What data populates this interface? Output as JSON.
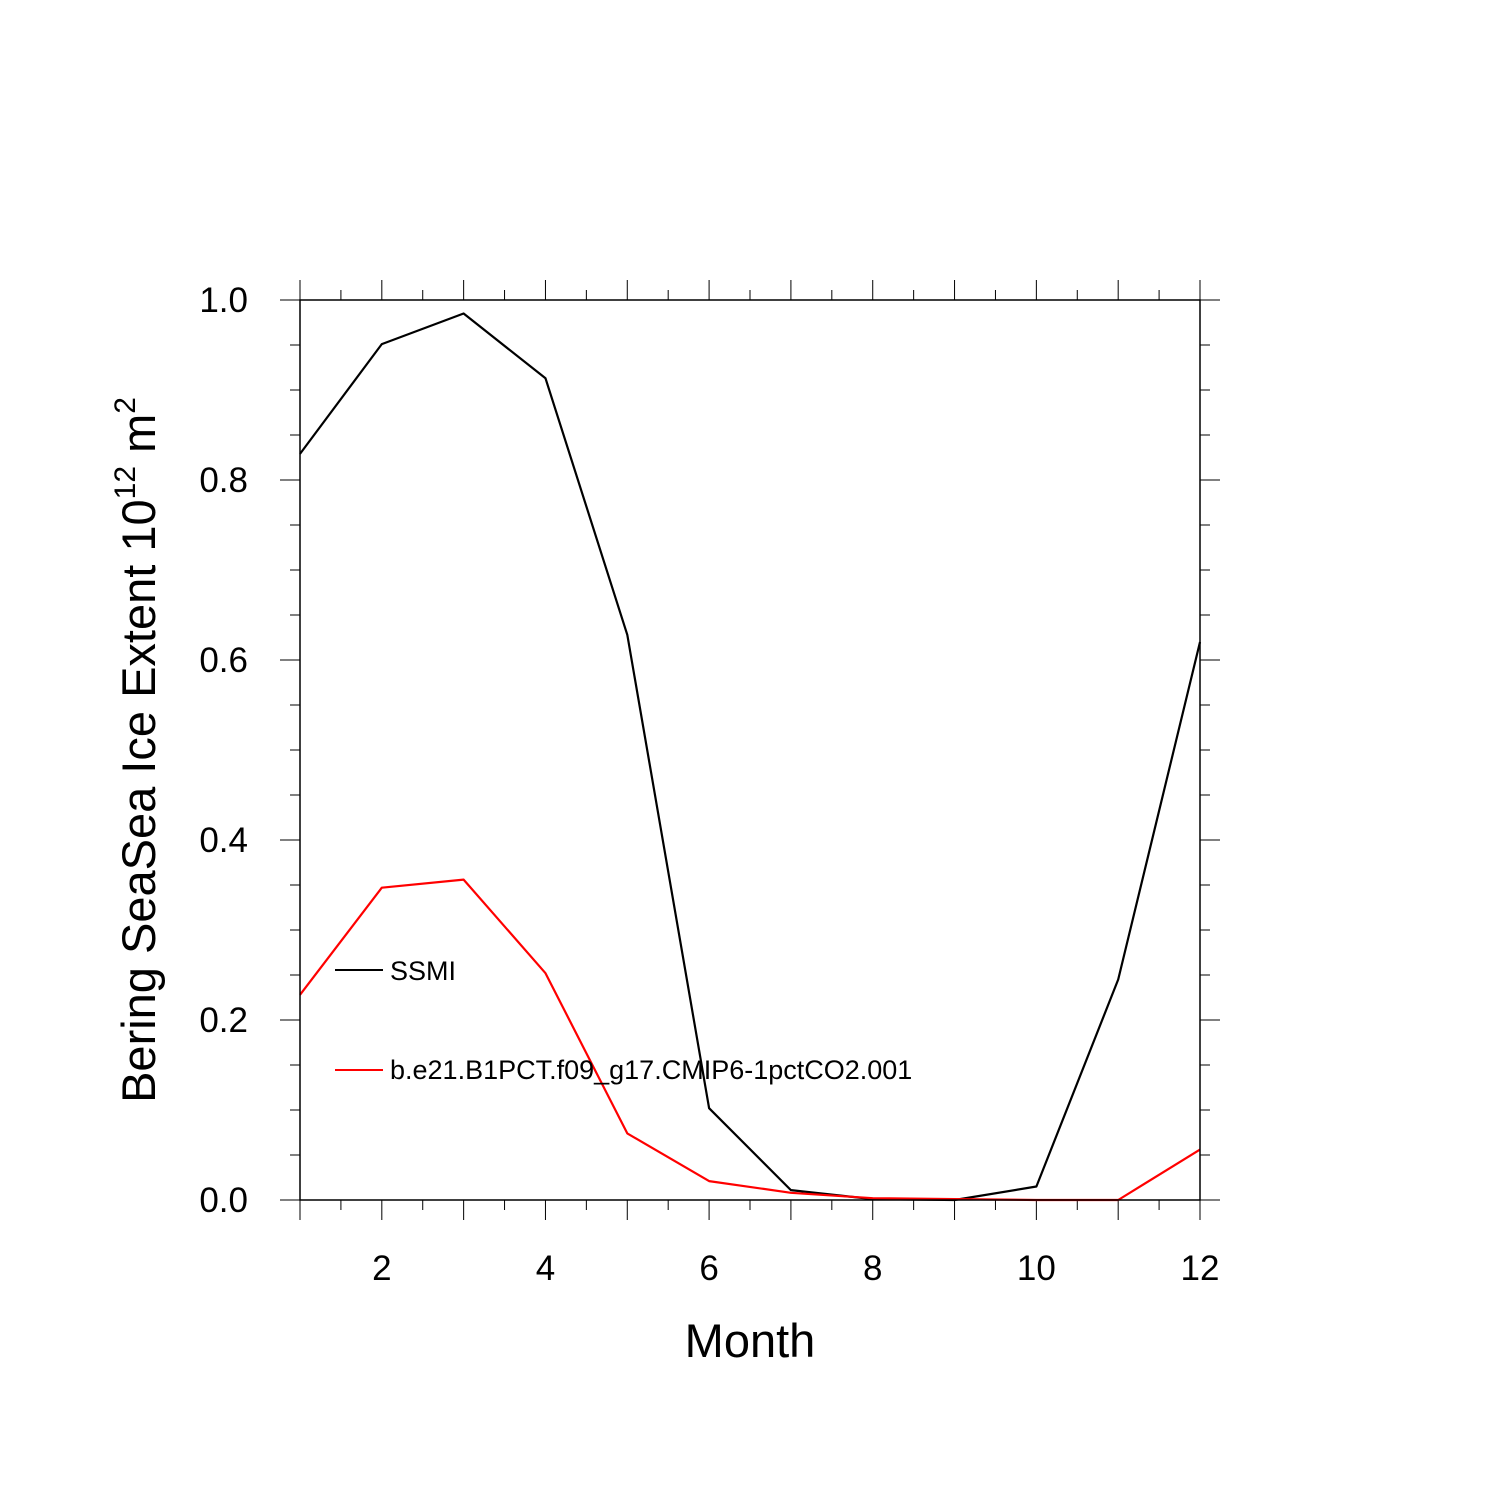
{
  "chart_data": {
    "type": "line",
    "title": "",
    "xlabel": "Month",
    "ylabel": {
      "main": "Bering SeaSea Ice Extent 10",
      "superscript_1": "12",
      "unit": " m",
      "superscript_2": "2"
    },
    "xlim": [
      1,
      12
    ],
    "ylim": [
      0.0,
      1.0
    ],
    "x_ticks": [
      2,
      4,
      6,
      8,
      10,
      12
    ],
    "x_tick_labels": [
      "2",
      "4",
      "6",
      "8",
      "10",
      "12"
    ],
    "y_ticks": [
      0.0,
      0.2,
      0.4,
      0.6,
      0.8,
      1.0
    ],
    "y_tick_labels": [
      "0.0",
      "0.2",
      "0.4",
      "0.6",
      "0.8",
      "1.0"
    ],
    "grid": false,
    "legend_position": "lower-left",
    "x": [
      1,
      2,
      3,
      4,
      5,
      6,
      7,
      8,
      9,
      10,
      11,
      12
    ],
    "series": [
      {
        "name": "SSMI",
        "color": "#000000",
        "values": [
          0.829,
          0.951,
          0.985,
          0.913,
          0.628,
          0.102,
          0.011,
          0.001,
          0.0,
          0.015,
          0.245,
          0.62
        ]
      },
      {
        "name": "b.e21.B1PCT.f09_g17.CMIP6-1pctCO2.001",
        "color": "#ff0000",
        "values": [
          0.228,
          0.347,
          0.356,
          0.252,
          0.074,
          0.021,
          0.008,
          0.002,
          0.001,
          0.0,
          0.0,
          0.056
        ]
      }
    ]
  }
}
